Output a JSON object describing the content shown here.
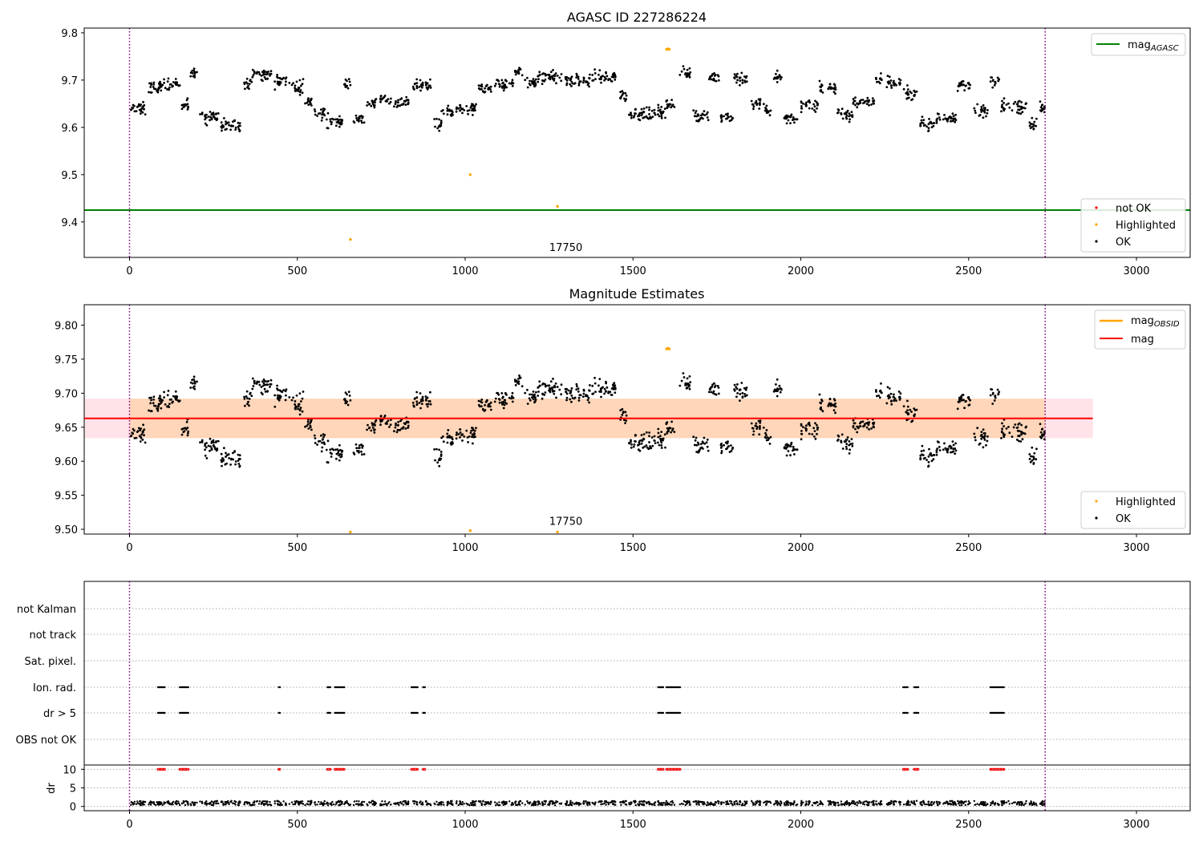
{
  "chart_data": [
    {
      "type": "scatter",
      "title": "AGASC ID 227286224",
      "xlim": [
        -135,
        3160
      ],
      "ylim": [
        9.325,
        9.81
      ],
      "xticks": [
        "0",
        "500",
        "1000",
        "1500",
        "2000",
        "2500",
        "3000"
      ],
      "yticks": [
        "9.4",
        "9.5",
        "9.6",
        "9.7",
        "9.8"
      ],
      "grid": false,
      "obs_bounds_x": [
        0,
        2728
      ],
      "obsid_label": {
        "text": "17750",
        "x": 1300,
        "y": 9.335
      },
      "reference_line": {
        "name": "mag_AGASC",
        "y": 9.425,
        "color": "#008000"
      },
      "highlighted_points": [
        {
          "x": 1600,
          "y": 9.765
        },
        {
          "x": 1604,
          "y": 9.766
        },
        {
          "x": 1608,
          "y": 9.765
        },
        {
          "x": 1015,
          "y": 9.5
        },
        {
          "x": 1275,
          "y": 9.433
        },
        {
          "x": 658,
          "y": 9.363
        }
      ],
      "ok_series": {
        "name": "OK",
        "x_range": [
          0,
          2728
        ],
        "y_approx_range": [
          9.59,
          9.745
        ],
        "n_points": 1500,
        "note_visible_as_scatter": true
      },
      "legend_upper": {
        "placement": "upper right",
        "label_main": "mag",
        "label_sub": "AGASC"
      },
      "legend_lower": {
        "placement": "lower right",
        "entries": [
          "not OK",
          "Highlighted",
          "OK"
        ]
      }
    },
    {
      "type": "scatter",
      "title": "Magnitude Estimates",
      "xlim": [
        -135,
        3160
      ],
      "ylim": [
        9.493,
        9.83
      ],
      "xticks": [
        "0",
        "500",
        "1000",
        "1500",
        "2000",
        "2500",
        "3000"
      ],
      "yticks": [
        "9.50",
        "9.55",
        "9.60",
        "9.65",
        "9.70",
        "9.75",
        "9.80"
      ],
      "grid": false,
      "obs_bounds_x": [
        0,
        2728
      ],
      "obsid_label": {
        "text": "17750",
        "x": 1300,
        "y": 9.504
      },
      "mag_line": {
        "name": "mag",
        "y": 9.663,
        "x_range": [
          -135,
          2870
        ],
        "color": "#ff0000"
      },
      "mag_band": {
        "y_range": [
          9.634,
          9.692
        ],
        "x_range": [
          -135,
          2870
        ],
        "color": "#ffc0cb"
      },
      "mag_obsid_band": {
        "y_range": [
          9.634,
          9.692
        ],
        "x_range": [
          0,
          2728
        ],
        "color": "#ffa500"
      },
      "highlighted_points": [
        {
          "x": 1600,
          "y": 9.765
        },
        {
          "x": 1604,
          "y": 9.766
        },
        {
          "x": 1608,
          "y": 9.765
        },
        {
          "x": 1015,
          "y": 9.498
        },
        {
          "x": 658,
          "y": 9.496
        },
        {
          "x": 1275,
          "y": 9.496
        }
      ],
      "legend_upper": {
        "placement": "upper right",
        "entries": [
          {
            "label_main": "mag",
            "label_sub": "OBSID",
            "color": "#ffa500"
          },
          {
            "label_main": "mag",
            "label_sub": "",
            "color": "#ff0000"
          }
        ]
      },
      "legend_lower": {
        "placement": "lower right",
        "entries": [
          "Highlighted",
          "OK"
        ]
      }
    },
    {
      "type": "scatter",
      "title": "",
      "xlim": [
        -135,
        3160
      ],
      "xticks": [
        "0",
        "500",
        "1000",
        "1500",
        "2000",
        "2500",
        "3000"
      ],
      "flag_rows": [
        "not Kalman",
        "not track",
        "Sat. pixel.",
        "Ion. rad.",
        "dr > 5",
        "OBS not OK"
      ],
      "flag_clusters_x": [
        [
          85,
          105
        ],
        [
          150,
          175
        ],
        [
          445,
          448
        ],
        [
          590,
          598
        ],
        [
          612,
          640
        ],
        [
          840,
          858
        ],
        [
          875,
          880
        ],
        [
          1575,
          1590
        ],
        [
          1600,
          1640
        ],
        [
          2305,
          2318
        ],
        [
          2338,
          2350
        ],
        [
          2565,
          2605
        ]
      ],
      "flagged_rows": [
        "Ion. rad.",
        "dr > 5"
      ],
      "dr_panel": {
        "ylabel": "dr",
        "yticks": [
          "0",
          "5",
          "10"
        ],
        "ylim": [
          -0.5,
          10.5
        ],
        "dr_typical": 0.9
      }
    }
  ],
  "colors": {
    "ok": "#000000",
    "highlighted": "#ffa500",
    "not_ok": "#ff0000",
    "obs_bound": "#800080"
  }
}
